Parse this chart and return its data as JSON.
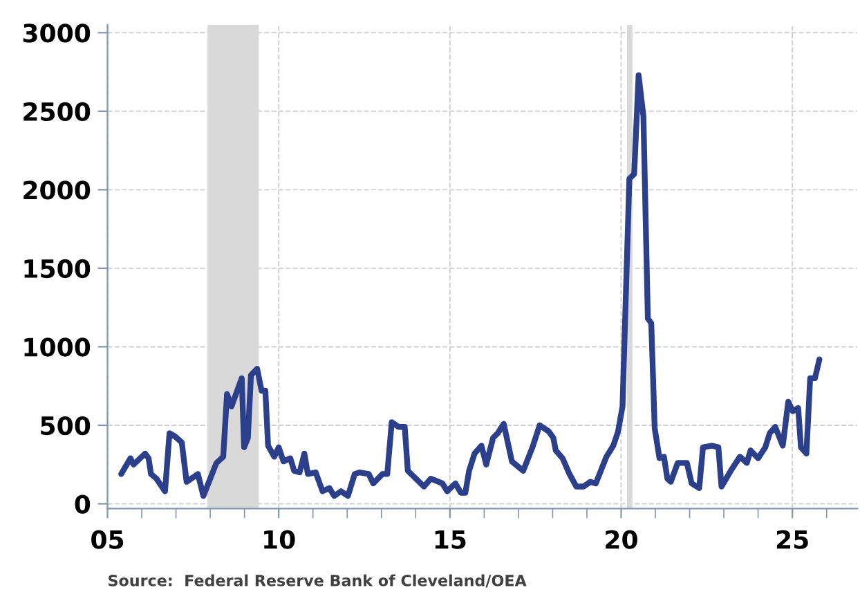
{
  "chart_data": {
    "type": "line",
    "x": [
      5.4,
      5.67,
      5.76,
      6.1,
      6.2,
      6.27,
      6.43,
      6.68,
      6.81,
      6.97,
      7.17,
      7.31,
      7.64,
      7.8,
      8.18,
      8.38,
      8.49,
      8.62,
      8.92,
      8.99,
      9.1,
      9.19,
      9.37,
      9.5,
      9.61,
      9.69,
      9.87,
      10.0,
      10.14,
      10.34,
      10.45,
      10.61,
      10.75,
      10.85,
      11.08,
      11.28,
      11.48,
      11.62,
      11.82,
      12.02,
      12.22,
      12.36,
      12.63,
      12.76,
      13.03,
      13.17,
      13.3,
      13.5,
      13.68,
      13.77,
      14.24,
      14.44,
      14.78,
      14.92,
      15.16,
      15.32,
      15.45,
      15.56,
      15.72,
      15.92,
      16.06,
      16.26,
      16.4,
      16.57,
      16.81,
      17.14,
      17.41,
      17.62,
      17.89,
      18.02,
      18.09,
      18.29,
      18.49,
      18.69,
      18.9,
      19.1,
      19.26,
      19.57,
      19.77,
      19.91,
      20.04,
      20.24,
      20.38,
      20.51,
      20.65,
      20.78,
      20.88,
      20.98,
      21.12,
      21.25,
      21.35,
      21.45,
      21.65,
      21.92,
      22.06,
      22.28,
      22.39,
      22.66,
      22.84,
      22.93,
      23.2,
      23.47,
      23.67,
      23.78,
      24.0,
      24.21,
      24.34,
      24.5,
      24.72,
      24.88,
      25.01,
      25.17,
      25.25,
      25.41,
      25.52,
      25.66,
      25.79
    ],
    "series": [
      {
        "color": "#2b3f8a",
        "values": [
          190,
          290,
          250,
          320,
          290,
          190,
          160,
          80,
          450,
          430,
          390,
          140,
          190,
          50,
          260,
          300,
          700,
          620,
          800,
          360,
          420,
          820,
          860,
          720,
          720,
          370,
          300,
          360,
          270,
          290,
          210,
          200,
          320,
          190,
          200,
          80,
          100,
          50,
          80,
          50,
          190,
          200,
          190,
          130,
          190,
          190,
          520,
          490,
          490,
          210,
          110,
          160,
          130,
          80,
          130,
          70,
          70,
          210,
          320,
          370,
          250,
          420,
          450,
          510,
          270,
          210,
          360,
          500,
          460,
          420,
          340,
          290,
          190,
          110,
          110,
          140,
          130,
          300,
          370,
          460,
          620,
          2070,
          2100,
          2730,
          2470,
          1180,
          1150,
          480,
          290,
          300,
          160,
          140,
          260,
          260,
          130,
          100,
          360,
          370,
          360,
          110,
          210,
          300,
          260,
          340,
          290,
          360,
          450,
          490,
          370,
          650,
          590,
          610,
          360,
          320,
          800,
          800,
          920
        ]
      }
    ],
    "xlim": [
      5,
      26.9
    ],
    "xticks": [
      {
        "value": 5,
        "label": "05"
      },
      {
        "value": 6,
        "label": null
      },
      {
        "value": 7,
        "label": null
      },
      {
        "value": 8,
        "label": null
      },
      {
        "value": 9,
        "label": null
      },
      10,
      {
        "value": 11,
        "label": null
      },
      {
        "value": 12,
        "label": null
      },
      {
        "value": 13,
        "label": null
      },
      {
        "value": 14,
        "label": null
      },
      15,
      {
        "value": 16,
        "label": null
      },
      {
        "value": 17,
        "label": null
      },
      {
        "value": 18,
        "label": null
      },
      {
        "value": 19,
        "label": null
      },
      20,
      {
        "value": 21,
        "label": null
      },
      {
        "value": 22,
        "label": null
      },
      {
        "value": 23,
        "label": null
      },
      {
        "value": 24,
        "label": null
      },
      25,
      {
        "value": 26,
        "label": null
      }
    ],
    "ylim": [
      -30,
      3050
    ],
    "yticks": [
      0,
      500,
      1000,
      1500,
      2000,
      2500,
      3000
    ],
    "bands": [
      {
        "axis": "x",
        "from": 7.92,
        "to": 9.42,
        "color": "#d9d9d9"
      },
      {
        "axis": "x",
        "from": 20.17,
        "to": 20.33,
        "color": "#d9d9d9"
      }
    ],
    "grid": true,
    "annotations": [
      "Source:  Federal Reserve Bank of Cleveland/OEA"
    ]
  }
}
